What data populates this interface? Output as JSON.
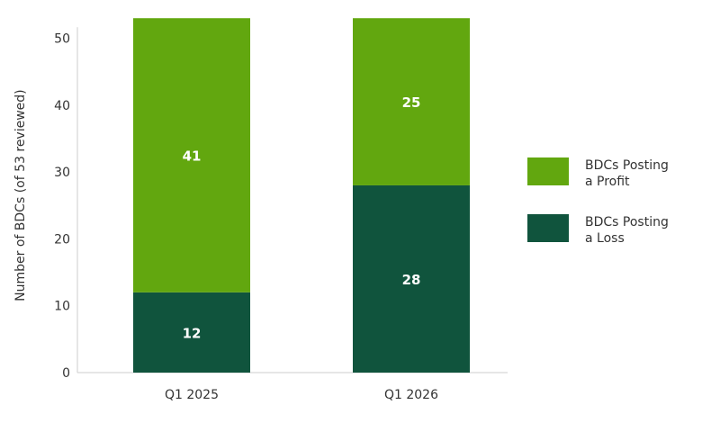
{
  "chart_data": {
    "type": "bar",
    "stacked": true,
    "categories": [
      "Q1 2025",
      "Q1 2026"
    ],
    "series": [
      {
        "name": "BDCs Posting a Loss",
        "legend_lines": [
          "BDCs Posting",
          "a Loss"
        ],
        "values": [
          12,
          28
        ],
        "color": "#10543d"
      },
      {
        "name": "BDCs Posting a Profit",
        "legend_lines": [
          "BDCs Posting",
          "a Profit"
        ],
        "values": [
          41,
          25
        ],
        "color": "#62a70f"
      }
    ],
    "ylabel": "Number of BDCs (of 53 reviewed)",
    "ylim": [
      0,
      53
    ],
    "yticks": [
      0,
      10,
      20,
      30,
      40,
      50
    ],
    "grid": false,
    "legend_position": "right"
  }
}
